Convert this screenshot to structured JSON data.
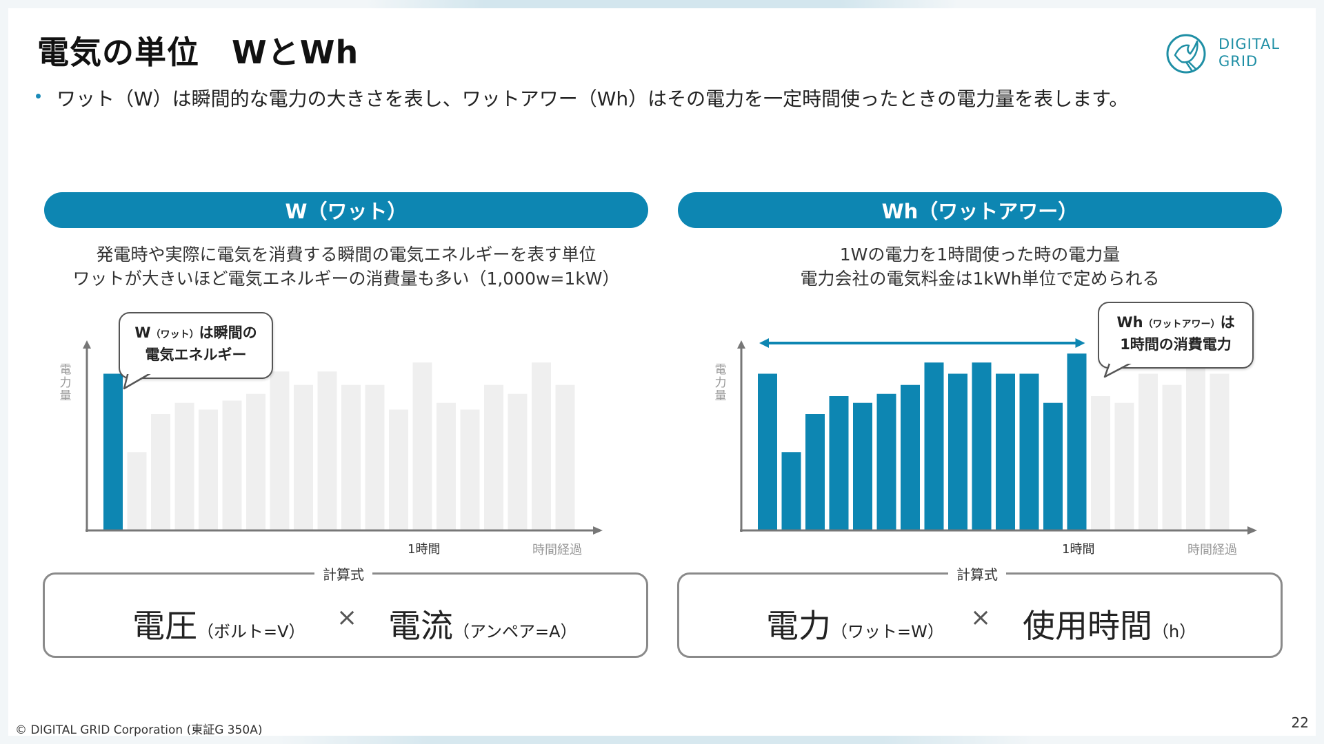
{
  "title": "電気の単位　WとWh",
  "lead": "ワット（W）は瞬間的な電力の大きさを表し、ワットアワー（Wh）はその電力を一定時間使ったときの電力量を表します。",
  "logo": {
    "line1": "DIGITAL",
    "line2": "GRID",
    "icon": "pigeon-icon",
    "color": "#1f8fa5"
  },
  "accent_color": "#0d86b2",
  "left_panel": {
    "heading": "W（ワット）",
    "desc_line1": "発電時や実際に電気を消費する瞬間の電気エネルギーを表す単位",
    "desc_line2": "ワットが大きいほど電気エネルギーの消費量も多い（1,000w=1kW）",
    "callout_main": "W",
    "callout_small": "（ワット）",
    "callout_tail": "は瞬間の",
    "callout_line2": "電気エネルギー",
    "formula_label": "計算式",
    "term1": "電圧",
    "term1_unit": "（ボルト=V）",
    "times": "×",
    "term2": "電流",
    "term2_unit": "（アンペア=A）"
  },
  "right_panel": {
    "heading": "Wh（ワットアワー）",
    "desc_line1": "1Wの電力を1時間使った時の電力量",
    "desc_line2": "電力会社の電気料金は1kWh単位で定められる",
    "callout_main": "Wh",
    "callout_small": "（ワットアワー）",
    "callout_tail": "は",
    "callout_line2": "1時間の消費電力",
    "formula_label": "計算式",
    "term1": "電力",
    "term1_unit": "（ワット=W）",
    "times": "×",
    "term2": "使用時間",
    "term2_unit": "（h）"
  },
  "chart_data": [
    {
      "type": "bar",
      "ylabel": "電力量",
      "xlabel": "時間経過",
      "x_marker_label": "1時間",
      "highlight_indices": [
        0
      ],
      "highlight_color": "#0d86b2",
      "base_color": "#efefef",
      "values": [
        70,
        35,
        52,
        57,
        54,
        58,
        61,
        71,
        65,
        71,
        65,
        65,
        54,
        75,
        57,
        54,
        65,
        61,
        75,
        65
      ],
      "ylim": [
        0,
        80
      ],
      "grid": false,
      "legend": "none"
    },
    {
      "type": "bar",
      "ylabel": "電力量",
      "xlabel": "時間経過",
      "x_marker_label": "1時間",
      "highlight_range": [
        0,
        13
      ],
      "highlight_color": "#0d86b2",
      "base_color": "#efefef",
      "values": [
        70,
        35,
        52,
        60,
        57,
        61,
        65,
        75,
        70,
        75,
        70,
        70,
        57,
        79,
        60,
        57,
        70,
        65,
        79,
        70
      ],
      "ylim": [
        0,
        80
      ],
      "grid": false,
      "legend": "none"
    }
  ],
  "footer": "© DIGITAL GRID Corporation (東証G 350A)",
  "page_number": "22"
}
